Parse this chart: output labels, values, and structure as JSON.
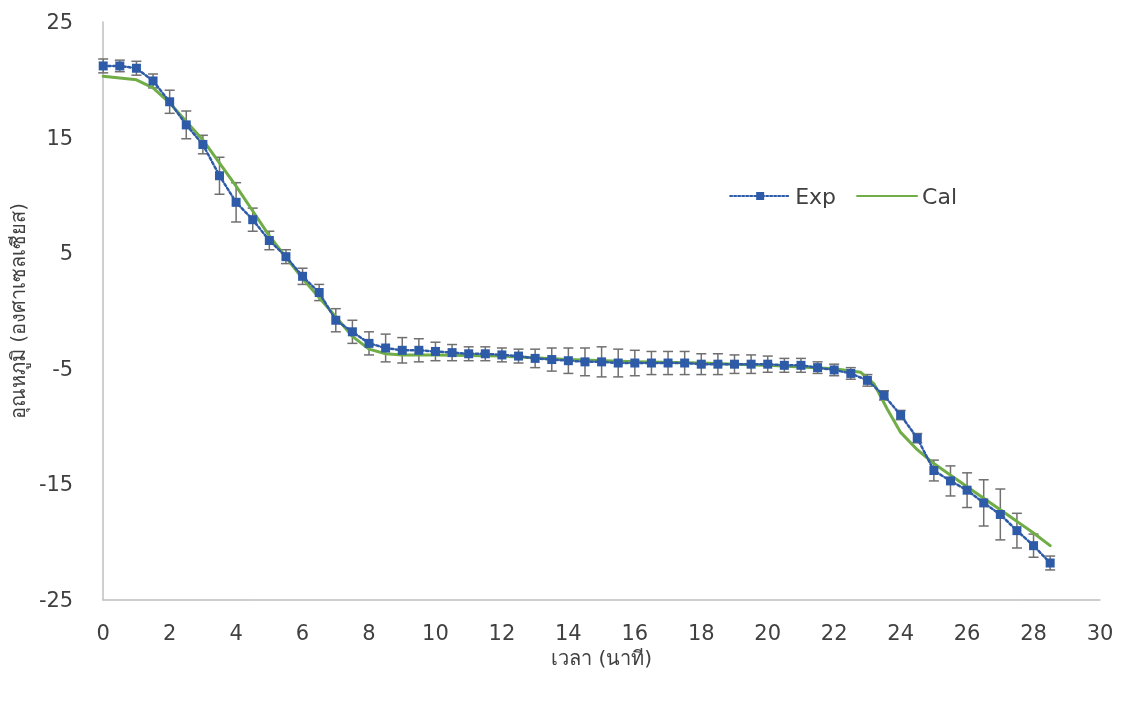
{
  "chart_data": {
    "type": "line",
    "xlabel": "เวลา (นาที)",
    "ylabel": "อุณหภูมิ (องศาเซลเซียส)",
    "xlim": [
      0,
      30
    ],
    "xticks": [
      0,
      2,
      4,
      6,
      8,
      10,
      12,
      14,
      16,
      18,
      20,
      22,
      24,
      26,
      28,
      30
    ],
    "ylim": [
      -25,
      25
    ],
    "yticks": [
      -25,
      -15,
      -5,
      5,
      15,
      25
    ],
    "grid": false,
    "legend": "top right",
    "series": [
      {
        "name": "Exp",
        "color": "#2e5ba8",
        "marker": "square",
        "line_style": "dotted",
        "x": [
          0,
          0.5,
          1,
          1.5,
          2,
          2.5,
          3,
          3.5,
          4,
          4.5,
          5,
          5.5,
          6,
          6.5,
          7,
          7.5,
          8,
          8.5,
          9,
          9.5,
          10,
          10.5,
          11,
          11.5,
          12,
          12.5,
          13,
          13.5,
          14,
          14.5,
          15,
          15.5,
          16,
          16.5,
          17,
          17.5,
          18,
          18.5,
          19,
          19.5,
          20,
          20.5,
          21,
          21.5,
          22,
          22.5,
          23,
          23.5,
          24,
          24.5,
          25,
          25.5,
          26,
          26.5,
          27,
          27.5,
          28,
          28.5
        ],
        "values": [
          21.2,
          21.2,
          21.0,
          19.9,
          18.1,
          16.1,
          14.4,
          11.7,
          9.4,
          7.9,
          6.1,
          4.7,
          3.0,
          1.6,
          -0.8,
          -1.8,
          -2.8,
          -3.2,
          -3.4,
          -3.4,
          -3.5,
          -3.6,
          -3.7,
          -3.7,
          -3.8,
          -3.9,
          -4.1,
          -4.2,
          -4.3,
          -4.4,
          -4.4,
          -4.5,
          -4.5,
          -4.5,
          -4.5,
          -4.5,
          -4.6,
          -4.6,
          -4.6,
          -4.6,
          -4.6,
          -4.7,
          -4.7,
          -4.9,
          -5.1,
          -5.4,
          -6.0,
          -7.3,
          -9.0,
          -11.0,
          -13.8,
          -14.7,
          -15.5,
          -16.6,
          -17.6,
          -19.0,
          -20.3,
          -21.8
        ],
        "errors": [
          0.6,
          0.5,
          0.6,
          0.6,
          1.0,
          1.2,
          0.8,
          1.6,
          1.7,
          1.0,
          0.8,
          0.6,
          0.7,
          0.7,
          1.0,
          1.0,
          1.0,
          1.2,
          1.1,
          1.0,
          0.8,
          0.7,
          0.6,
          0.6,
          0.6,
          0.6,
          0.8,
          1.0,
          1.1,
          1.2,
          1.3,
          1.2,
          1.1,
          1.0,
          1.0,
          1.0,
          0.9,
          0.9,
          0.8,
          0.8,
          0.7,
          0.6,
          0.6,
          0.5,
          0.5,
          0.5,
          0.5,
          0.4,
          0.4,
          0.4,
          0.9,
          1.3,
          1.5,
          2.0,
          2.2,
          1.5,
          1.0,
          0.6
        ]
      },
      {
        "name": "Cal",
        "color": "#70ad47",
        "marker": "none",
        "line_style": "solid",
        "x": [
          0,
          1,
          1.5,
          2,
          3,
          4,
          5,
          6,
          7,
          7.5,
          8,
          8.5,
          9,
          10,
          12,
          14,
          16,
          18,
          20,
          22,
          22.8,
          23.2,
          23.6,
          24,
          24.5,
          25,
          26,
          27,
          28,
          28.5
        ],
        "values": [
          20.3,
          20.0,
          19.3,
          18.0,
          14.8,
          10.8,
          6.5,
          2.8,
          -0.5,
          -2.2,
          -3.3,
          -3.7,
          -3.8,
          -3.8,
          -3.9,
          -4.2,
          -4.4,
          -4.5,
          -4.7,
          -5.0,
          -5.3,
          -6.3,
          -8.5,
          -10.5,
          -12.0,
          -13.2,
          -15.2,
          -17.2,
          -19.2,
          -20.3
        ]
      }
    ]
  }
}
